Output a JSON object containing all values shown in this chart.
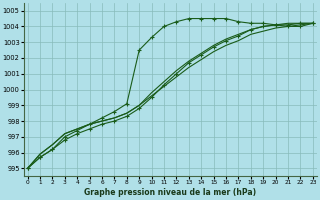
{
  "bg_color": "#b0e0e8",
  "grid_color": "#88bbbb",
  "line_color": "#1a5c1a",
  "xlabel": "Graphe pression niveau de la mer (hPa)",
  "xlim": [
    -0.3,
    23.3
  ],
  "ylim": [
    994.5,
    1005.5
  ],
  "yticks": [
    995,
    996,
    997,
    998,
    999,
    1000,
    1001,
    1002,
    1003,
    1004,
    1005
  ],
  "xticks": [
    0,
    1,
    2,
    3,
    4,
    5,
    6,
    7,
    8,
    9,
    10,
    11,
    12,
    13,
    14,
    15,
    16,
    17,
    18,
    19,
    20,
    21,
    22,
    23
  ],
  "series": [
    {
      "y": [
        995.0,
        995.7,
        996.2,
        997.0,
        997.4,
        997.8,
        998.2,
        998.6,
        999.1,
        1002.5,
        1003.3,
        1004.0,
        1004.3,
        1004.5,
        1004.5,
        1004.5,
        1004.5,
        1004.3,
        1004.2,
        1004.2,
        1004.1,
        1004.0,
        1004.0,
        1004.2
      ],
      "marker": "+",
      "linestyle": "-",
      "linewidth": 0.8,
      "markersize": 3.5
    },
    {
      "y": [
        995.0,
        995.9,
        996.5,
        997.2,
        997.5,
        997.8,
        998.0,
        998.2,
        998.5,
        999.0,
        999.8,
        1000.5,
        1001.2,
        1001.8,
        1002.3,
        1002.8,
        1003.2,
        1003.5,
        1003.8,
        1004.0,
        1004.1,
        1004.2,
        1004.2,
        1004.2
      ],
      "marker": null,
      "linestyle": "-",
      "linewidth": 0.8,
      "markersize": 0
    },
    {
      "y": [
        995.0,
        995.9,
        996.5,
        997.2,
        997.5,
        997.8,
        998.0,
        998.2,
        998.5,
        999.0,
        999.6,
        1000.2,
        1000.8,
        1001.4,
        1001.9,
        1002.4,
        1002.8,
        1003.1,
        1003.5,
        1003.7,
        1003.9,
        1004.0,
        1004.1,
        1004.2
      ],
      "marker": null,
      "linestyle": "-",
      "linewidth": 0.8,
      "markersize": 0
    },
    {
      "y": [
        995.0,
        995.7,
        996.2,
        996.8,
        997.2,
        997.5,
        997.8,
        998.0,
        998.3,
        998.8,
        999.5,
        1000.3,
        1001.0,
        1001.7,
        1002.2,
        1002.7,
        1003.1,
        1003.4,
        1003.8,
        1004.0,
        1004.1,
        1004.1,
        1004.2,
        1004.2
      ],
      "marker": "+",
      "linestyle": "-",
      "linewidth": 0.8,
      "markersize": 3.5
    }
  ]
}
